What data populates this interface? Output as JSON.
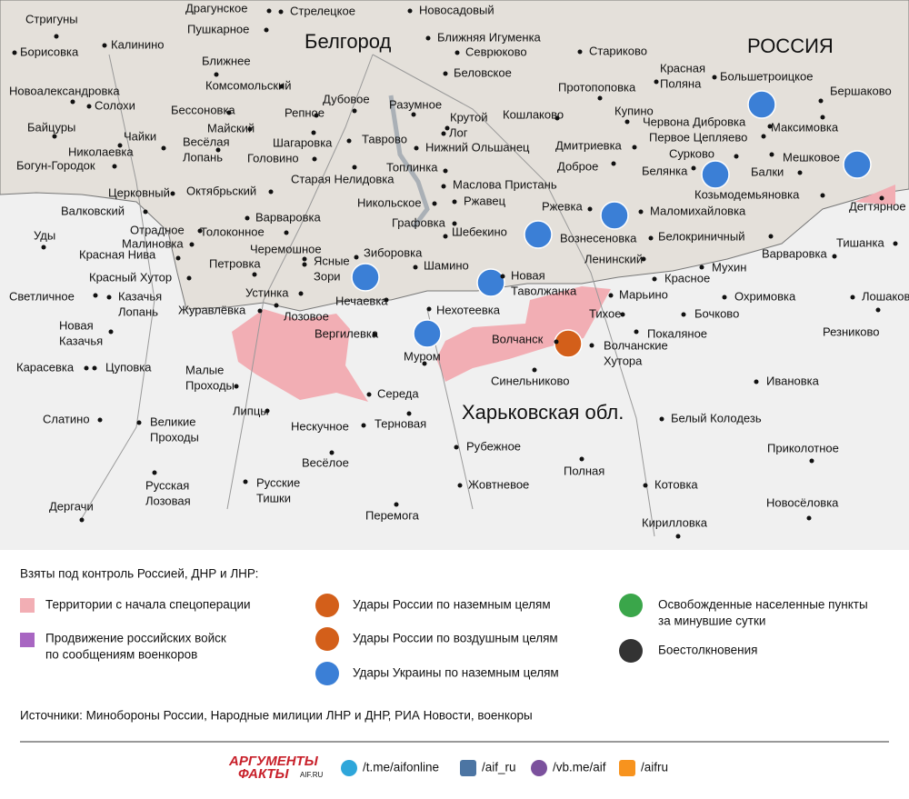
{
  "map": {
    "regions": [
      "Белгород",
      "РОССИЯ",
      "Харьковская обл."
    ],
    "places": [
      "Драгунское",
      "Стрелецкое",
      "Новосадовый",
      "Стригуны",
      "Пушкарное",
      "Ближняя Игуменка",
      "Севрюково",
      "Борисовка",
      "Калинино",
      "Стариково",
      [
        "Красная",
        "Поляна"
      ],
      "Большетроицкое",
      "Ближнее",
      "Беловское",
      "Комсомольский",
      "Протопоповка",
      "Новоалександровка",
      "Солохи",
      "Бершаково",
      "Бессоновка",
      "Дубовое",
      "Разумное",
      "Байцуры",
      "Майский",
      "Репное",
      "Крутой",
      "Кошлаково",
      "Купино",
      "Червона Дибровка",
      "Максимовка",
      "Чайки",
      "Шагаровка",
      [
        "Весёлая",
        "Лопань"
      ],
      "Таврово",
      "Лог",
      "Первое Цепляево",
      "Николаевка",
      "Нижний Ольшанец",
      "Дмитриевка",
      "Головино",
      "Мешковое",
      "Богун-Городок",
      "Старая Нелидовка",
      "Топлинка",
      "Доброе",
      "Белянка",
      "Сурково",
      "Балки",
      "Маслова Пристань",
      "Церковный",
      "Октябрьский",
      "Никольское",
      "Ржавец",
      "Ржевка",
      "Козьмодемьяновка",
      "Дегтярное",
      "Валковский",
      "Варваровка",
      "Маломихайловка",
      "Графовка",
      "Отрадное",
      "Толоконное",
      "Шебекино",
      "Вознесеновка",
      "Белокриничный",
      "Уды",
      "Малиновка",
      "Тишанка",
      "Красная Нива",
      "Черемошное",
      "Зиборовка",
      "Варваровка",
      "Петровка",
      [
        "Ясные",
        "Зори"
      ],
      "Шамино",
      "Ленинский",
      "Мухин",
      "Красный Хутор",
      [
        "Новая",
        "Таволжанка"
      ],
      "Красное",
      "Светличное",
      "Устинка",
      [
        "Казачья",
        "Лопань"
      ],
      "Нечаевка",
      "Марьино",
      "Охримовка",
      "Лошаково",
      "Журавлёвка",
      "Лозовое",
      "Нехотеевка",
      "Тихое",
      "Бочково",
      [
        "Новая",
        "Казачья"
      ],
      "Резниково",
      "Вергилевка",
      "Волчанск",
      "Покаляное",
      [
        "Волчанские",
        "Хутора"
      ],
      "Муром",
      "Карасевка",
      "Цуповка",
      [
        "Малые",
        "Проходы"
      ],
      "Синельниково",
      "Ивановка",
      "Середа",
      "Липцы",
      "Белый Колодезь",
      "Слатино",
      [
        "Великие",
        "Проходы"
      ],
      "Нескучное",
      "Терновая",
      "Рубежное",
      "Приколотное",
      "Весёлое",
      "Полная",
      "Жовтневое",
      "Котовка",
      [
        "Русская",
        "Лозовая"
      ],
      [
        "Русские",
        "Тишки"
      ],
      "Новосёловка",
      "Дергачи",
      "Перемога",
      "Кирилловка"
    ]
  },
  "legend": {
    "title": "Взяты под контроль Россией, ДНР и ЛНР:",
    "items": [
      [
        "Территории с начала спецоперации"
      ],
      [
        "Продвижение российских войск",
        "по сообщениям военкоров"
      ],
      [
        "Удары России по наземным целям"
      ],
      [
        "Удары России по воздушным целям"
      ],
      [
        "Удары Украины по наземным целям"
      ],
      [
        "Освобожденные населенные пункты",
        "за минувшие сутки"
      ],
      [
        "Боестолкновения"
      ]
    ],
    "sources": "Источники: Минобороны России, Народные милиции ЛНР и ДНР, РИА Новости, военкоры"
  },
  "footer": {
    "logo": [
      "АРГУМЕНТЫ",
      "ФАКТЫ",
      "AIF.RU"
    ],
    "links": [
      "/t.me/aifonline",
      "/aif_ru",
      "/vb.me/aif",
      "/aifru"
    ]
  }
}
